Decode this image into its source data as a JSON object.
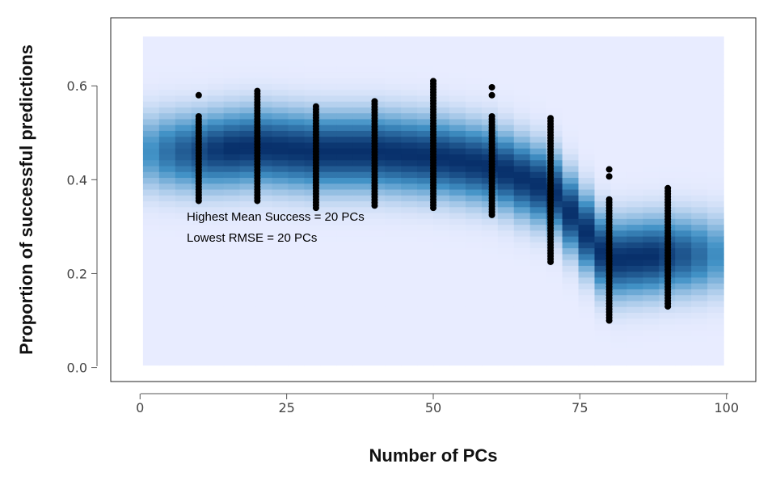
{
  "chart_data": {
    "type": "scatter",
    "title": "",
    "xlabel": "Number of PCs",
    "ylabel": "Proportion of successful predictions",
    "xlim": [
      -5,
      105
    ],
    "ylim": [
      -0.03,
      0.745
    ],
    "x_ticks": [
      0,
      25,
      50,
      75,
      100
    ],
    "x_tick_labels": [
      "0",
      "25",
      "50",
      "75",
      "100"
    ],
    "y_ticks": [
      0.0,
      0.2,
      0.4,
      0.6
    ],
    "y_tick_labels": [
      "0.0",
      "0.2",
      "0.4",
      "0.6"
    ],
    "grid": false,
    "legend": "none",
    "density_background": {
      "color_low": "#e8ecff",
      "color_high": "#08306b",
      "x_range": [
        0.5,
        99.5
      ],
      "y_range": [
        0.005,
        0.705
      ]
    },
    "point_color": "#000000",
    "annotations": [
      {
        "text": "Highest Mean Success = 20 PCs",
        "x": 8,
        "y": 0.32
      },
      {
        "text": "Lowest RMSE = 20 PCs",
        "x": 8,
        "y": 0.275
      }
    ],
    "groups": [
      {
        "x": 10,
        "mean": 0.46,
        "min": 0.355,
        "max": 0.535,
        "outliers": [
          0.58
        ]
      },
      {
        "x": 20,
        "mean": 0.47,
        "min": 0.355,
        "max": 0.59,
        "outliers": []
      },
      {
        "x": 30,
        "mean": 0.46,
        "min": 0.34,
        "max": 0.56,
        "outliers": []
      },
      {
        "x": 40,
        "mean": 0.46,
        "min": 0.345,
        "max": 0.57,
        "outliers": []
      },
      {
        "x": 50,
        "mean": 0.45,
        "min": 0.34,
        "max": 0.61,
        "outliers": []
      },
      {
        "x": 60,
        "mean": 0.43,
        "min": 0.325,
        "max": 0.54,
        "outliers": [
          0.58,
          0.597
        ]
      },
      {
        "x": 70,
        "mean": 0.38,
        "min": 0.225,
        "max": 0.535,
        "outliers": []
      },
      {
        "x": 80,
        "mean": 0.23,
        "min": 0.1,
        "max": 0.36,
        "outliers": [
          0.407,
          0.422
        ]
      },
      {
        "x": 90,
        "mean": 0.24,
        "min": 0.13,
        "max": 0.385,
        "outliers": []
      }
    ]
  }
}
